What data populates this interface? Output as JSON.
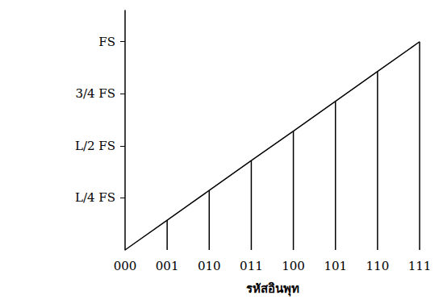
{
  "chart_data": {
    "type": "line",
    "x_label": "รหัสอินพุท",
    "categories": [
      "000",
      "001",
      "010",
      "011",
      "100",
      "101",
      "110",
      "111"
    ],
    "values": [
      0,
      0.143,
      0.286,
      0.429,
      0.571,
      0.714,
      0.857,
      1
    ],
    "color": "#000000",
    "ylim": [
      0,
      1.15
    ],
    "yticks": [
      {
        "value": 0.25,
        "label": "L/4 FS"
      },
      {
        "value": 0.5,
        "label": "L/2 FS"
      },
      {
        "value": 0.75,
        "label": "3/4 FS"
      },
      {
        "value": 1,
        "label": "FS"
      }
    ],
    "grid": false
  }
}
